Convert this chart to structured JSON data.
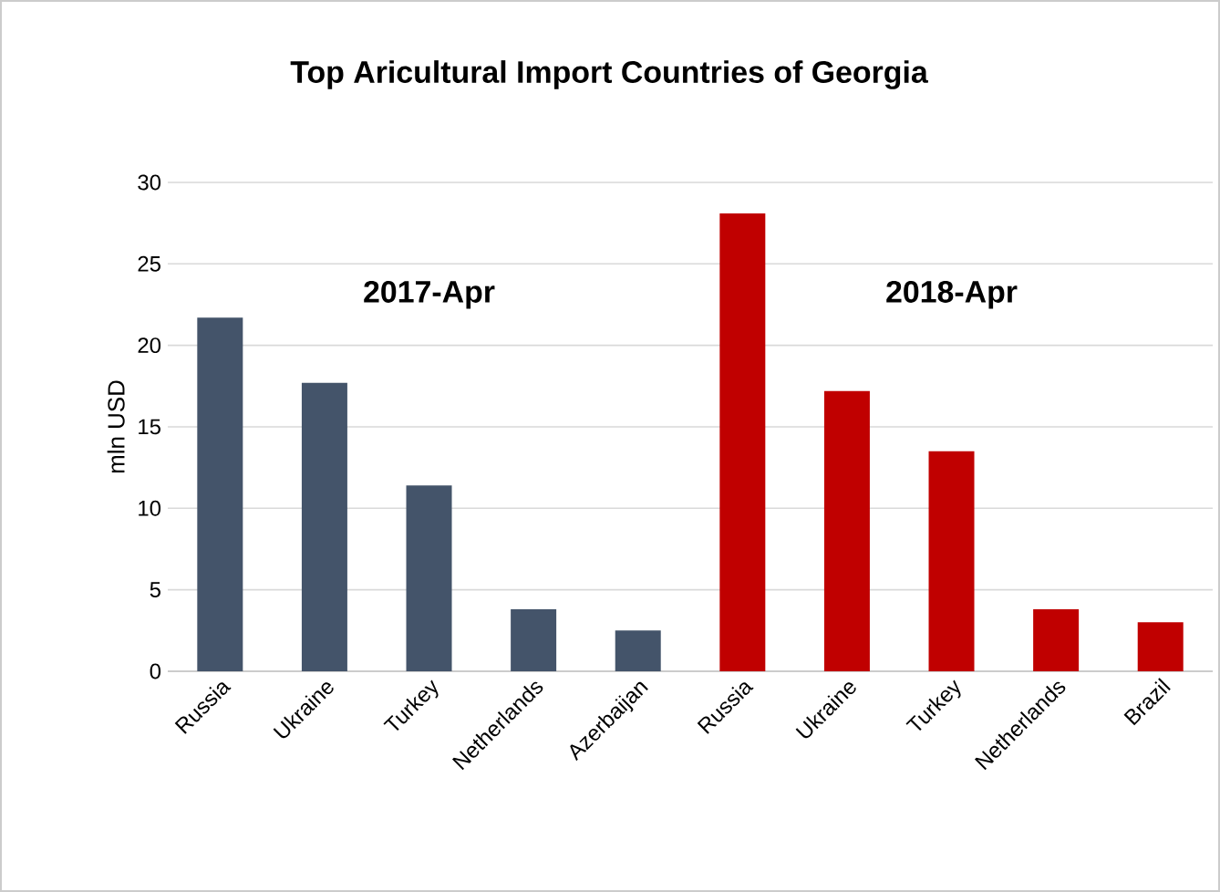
{
  "chart_data": {
    "type": "bar",
    "title": "Top Aricultural Import Countries of Georgia",
    "ylabel": "mln USD",
    "categories": [
      "Russia",
      "Ukraine",
      "Turkey",
      "Netherlands",
      "Azerbaijan",
      "Russia",
      "Ukraine",
      "Turkey",
      "Netherlands",
      "Brazil"
    ],
    "values": [
      21.7,
      17.7,
      11.4,
      3.8,
      2.5,
      28.1,
      17.2,
      13.5,
      3.8,
      3.0
    ],
    "colors": [
      "#44546a",
      "#44546a",
      "#44546a",
      "#44546a",
      "#44546a",
      "#c00000",
      "#c00000",
      "#c00000",
      "#c00000",
      "#c00000"
    ],
    "annotations": [
      "2017-Apr",
      "2018-Apr"
    ],
    "ylim": [
      0,
      30
    ],
    "yticks": [
      0,
      5,
      10,
      15,
      20,
      25,
      30
    ],
    "grid": "y"
  }
}
